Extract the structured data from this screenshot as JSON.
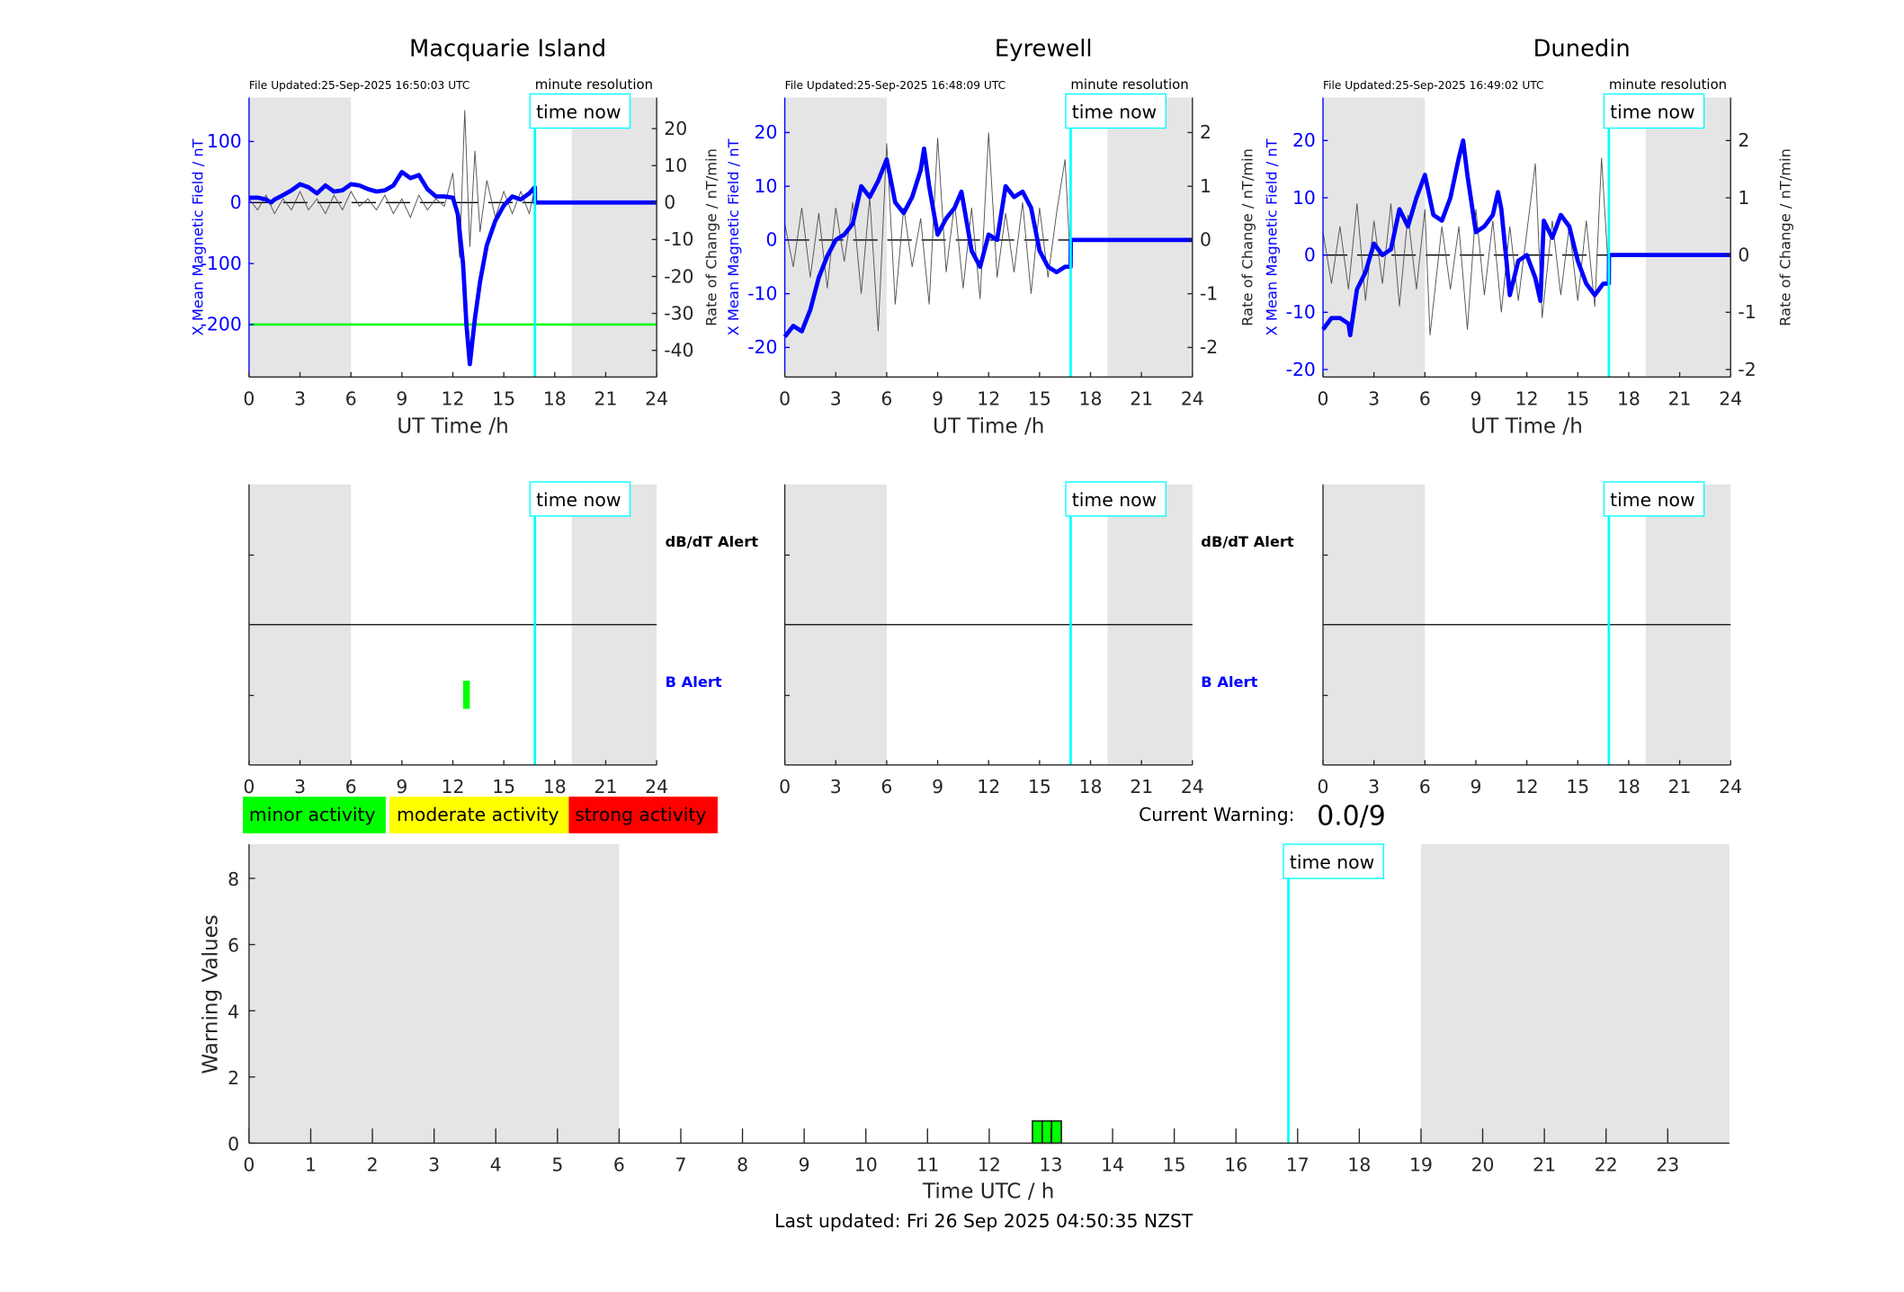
{
  "colors": {
    "field": "#0000ff",
    "roc": "#000000",
    "timenow": "#00ffff",
    "shade": "#e5e5e5",
    "threshold": "#00ff00",
    "minor": "#00ff00",
    "moderate": "#ffff00",
    "strong": "#ff0000"
  },
  "time_now_label": "time now",
  "resolution_label": "minute resolution",
  "legend": {
    "minor": "minor activity",
    "moderate": "moderate activity",
    "strong": "strong activity"
  },
  "current_warning": {
    "label": "Current Warning:",
    "value": "0.0/9"
  },
  "footer": "Last updated: Fri 26 Sep 2025 04:50:35 NZST",
  "chart_data": [
    {
      "type": "line",
      "title": "Macquarie Island",
      "file_updated": "File Updated:25-Sep-2025 16:50:03 UTC",
      "xlabel": "UT Time /h",
      "ylabel": "X Mean Magnetic Field / nT",
      "y2label": "Rate of Change / nT/min",
      "xlim": [
        0,
        24
      ],
      "xticks": [
        0,
        3,
        6,
        9,
        12,
        15,
        18,
        21,
        24
      ],
      "ylim": [
        -286,
        172
      ],
      "yticks": [
        100,
        0,
        -100,
        -200
      ],
      "y2lim": [
        -47.2,
        28.4
      ],
      "y2ticks": [
        20,
        10,
        0,
        -10,
        -20,
        -30,
        -40
      ],
      "shaded_hours": [
        [
          0,
          6
        ],
        [
          19,
          24
        ]
      ],
      "time_now": 16.83,
      "threshold": -200,
      "x_field": [
        [
          0,
          8
        ],
        [
          0.5,
          8
        ],
        [
          1,
          5
        ],
        [
          1.3,
          0
        ],
        [
          1.5,
          5
        ],
        [
          2,
          12
        ],
        [
          2.5,
          20
        ],
        [
          3,
          30
        ],
        [
          3.5,
          25
        ],
        [
          4,
          15
        ],
        [
          4.5,
          28
        ],
        [
          5,
          18
        ],
        [
          5.5,
          20
        ],
        [
          6,
          30
        ],
        [
          6.5,
          28
        ],
        [
          7,
          22
        ],
        [
          7.5,
          18
        ],
        [
          8,
          20
        ],
        [
          8.5,
          28
        ],
        [
          9,
          50
        ],
        [
          9.5,
          40
        ],
        [
          10,
          45
        ],
        [
          10.5,
          22
        ],
        [
          11,
          10
        ],
        [
          11.5,
          10
        ],
        [
          12,
          8
        ],
        [
          12.3,
          -20
        ],
        [
          12.6,
          -100
        ],
        [
          12.8,
          -200
        ],
        [
          13,
          -265
        ],
        [
          13.3,
          -190
        ],
        [
          13.6,
          -130
        ],
        [
          14,
          -70
        ],
        [
          14.5,
          -30
        ],
        [
          15,
          -5
        ],
        [
          15.5,
          10
        ],
        [
          16,
          5
        ],
        [
          16.5,
          15
        ],
        [
          16.83,
          25
        ],
        [
          16.84,
          0
        ],
        [
          24,
          0
        ]
      ],
      "rate_of_change": [
        [
          0,
          1
        ],
        [
          0.5,
          -2
        ],
        [
          1,
          2
        ],
        [
          1.5,
          -3
        ],
        [
          2,
          1
        ],
        [
          2.5,
          -2
        ],
        [
          3,
          3
        ],
        [
          3.5,
          -2
        ],
        [
          4,
          1
        ],
        [
          4.5,
          -3
        ],
        [
          5,
          2
        ],
        [
          5.5,
          -2
        ],
        [
          6,
          3
        ],
        [
          6.5,
          -1
        ],
        [
          7,
          1
        ],
        [
          7.5,
          -2
        ],
        [
          8,
          2
        ],
        [
          8.5,
          -3
        ],
        [
          9,
          1
        ],
        [
          9.5,
          -4
        ],
        [
          10,
          2
        ],
        [
          10.5,
          -2
        ],
        [
          11,
          1
        ],
        [
          11.5,
          -1
        ],
        [
          12,
          8
        ],
        [
          12.4,
          -15
        ],
        [
          12.7,
          25
        ],
        [
          13,
          -12
        ],
        [
          13.3,
          14
        ],
        [
          13.6,
          -8
        ],
        [
          14,
          6
        ],
        [
          14.5,
          -4
        ],
        [
          15,
          3
        ],
        [
          15.5,
          -3
        ],
        [
          16,
          3
        ],
        [
          16.5,
          -3
        ],
        [
          16.83,
          4
        ]
      ],
      "alerts": {
        "dbdt_label": "dB/dT Alert",
        "b_label": "B Alert",
        "b_alert_periods": [
          [
            12.6,
            13.0
          ]
        ],
        "dbdt_alert_periods": []
      }
    },
    {
      "type": "line",
      "title": "Eyrewell",
      "file_updated": "File Updated:25-Sep-2025 16:48:09 UTC",
      "xlabel": "UT Time /h",
      "ylabel": "X Mean Magnetic Field / nT",
      "y2label": "Rate of Change / nT/min",
      "xlim": [
        0,
        24
      ],
      "xticks": [
        0,
        3,
        6,
        9,
        12,
        15,
        18,
        21,
        24
      ],
      "ylim": [
        -25.5,
        26.5
      ],
      "yticks": [
        20,
        10,
        0,
        -10,
        -20
      ],
      "y2lim": [
        -2.55,
        2.65
      ],
      "y2ticks": [
        2,
        1,
        0,
        -1,
        -2
      ],
      "shaded_hours": [
        [
          0,
          6
        ],
        [
          19,
          24
        ]
      ],
      "time_now": 16.83,
      "x_field": [
        [
          0,
          -18
        ],
        [
          0.5,
          -16
        ],
        [
          1,
          -17
        ],
        [
          1.5,
          -13
        ],
        [
          2,
          -7
        ],
        [
          2.5,
          -3
        ],
        [
          3,
          0
        ],
        [
          3.5,
          1
        ],
        [
          4,
          3
        ],
        [
          4.5,
          10
        ],
        [
          5,
          8
        ],
        [
          5.5,
          11
        ],
        [
          6,
          15
        ],
        [
          6.5,
          7
        ],
        [
          7,
          5
        ],
        [
          7.5,
          8
        ],
        [
          8,
          13
        ],
        [
          8.2,
          17
        ],
        [
          8.5,
          10
        ],
        [
          9,
          1
        ],
        [
          9.5,
          4
        ],
        [
          10,
          6
        ],
        [
          10.4,
          9
        ],
        [
          11,
          -2
        ],
        [
          11.5,
          -5
        ],
        [
          12,
          1
        ],
        [
          12.5,
          0
        ],
        [
          13,
          10
        ],
        [
          13.5,
          8
        ],
        [
          14,
          9
        ],
        [
          14.5,
          6
        ],
        [
          15,
          -2
        ],
        [
          15.5,
          -5
        ],
        [
          16,
          -6
        ],
        [
          16.5,
          -5
        ],
        [
          16.83,
          -5
        ],
        [
          16.84,
          0
        ],
        [
          24,
          0
        ]
      ],
      "rate_of_change": [
        [
          0,
          0.3
        ],
        [
          0.5,
          -0.5
        ],
        [
          1,
          0.6
        ],
        [
          1.5,
          -0.7
        ],
        [
          2,
          0.5
        ],
        [
          2.5,
          -0.9
        ],
        [
          3,
          0.6
        ],
        [
          3.5,
          -0.4
        ],
        [
          4,
          0.7
        ],
        [
          4.5,
          -1.0
        ],
        [
          5,
          0.8
        ],
        [
          5.5,
          -1.7
        ],
        [
          6,
          1.8
        ],
        [
          6.5,
          -1.2
        ],
        [
          7,
          0.6
        ],
        [
          7.5,
          -0.5
        ],
        [
          8,
          0.4
        ],
        [
          8.5,
          -1.2
        ],
        [
          9,
          1.9
        ],
        [
          9.5,
          -0.6
        ],
        [
          10,
          0.7
        ],
        [
          10.5,
          -0.9
        ],
        [
          11,
          0.6
        ],
        [
          11.5,
          -1.1
        ],
        [
          12,
          2.0
        ],
        [
          12.5,
          -0.7
        ],
        [
          13,
          0.5
        ],
        [
          13.5,
          -0.6
        ],
        [
          14,
          0.7
        ],
        [
          14.5,
          -1.0
        ],
        [
          15,
          0.6
        ],
        [
          15.5,
          -0.7
        ],
        [
          16,
          0.5
        ],
        [
          16.5,
          1.5
        ],
        [
          16.83,
          -0.5
        ]
      ],
      "alerts": {
        "dbdt_label": "dB/dT Alert",
        "b_label": "B Alert",
        "b_alert_periods": [],
        "dbdt_alert_periods": []
      }
    },
    {
      "type": "line",
      "title": "Dunedin",
      "file_updated": "File Updated:25-Sep-2025 16:49:02 UTC",
      "xlabel": "UT Time /h",
      "ylabel": "X Mean Magnetic Field / nT",
      "y2label": "Rate of Change / nT/min",
      "xlim": [
        0,
        24
      ],
      "xticks": [
        0,
        3,
        6,
        9,
        12,
        15,
        18,
        21,
        24
      ],
      "ylim": [
        -21.3,
        27.5
      ],
      "yticks": [
        20,
        10,
        0,
        -10,
        -20
      ],
      "y2lim": [
        -2.13,
        2.75
      ],
      "y2ticks": [
        2,
        1,
        0,
        -1,
        -2
      ],
      "shaded_hours": [
        [
          0,
          6
        ],
        [
          19,
          24
        ]
      ],
      "time_now": 16.83,
      "x_field": [
        [
          0,
          -13
        ],
        [
          0.5,
          -11
        ],
        [
          1,
          -11
        ],
        [
          1.5,
          -12
        ],
        [
          1.6,
          -14
        ],
        [
          2,
          -6
        ],
        [
          2.5,
          -3
        ],
        [
          3,
          2
        ],
        [
          3.5,
          0
        ],
        [
          4,
          1
        ],
        [
          4.5,
          8
        ],
        [
          5,
          5
        ],
        [
          5.5,
          10
        ],
        [
          6,
          14
        ],
        [
          6.5,
          7
        ],
        [
          7,
          6
        ],
        [
          7.5,
          10
        ],
        [
          8,
          17
        ],
        [
          8.25,
          20
        ],
        [
          8.5,
          14
        ],
        [
          9,
          4
        ],
        [
          9.5,
          5
        ],
        [
          10,
          7
        ],
        [
          10.3,
          11
        ],
        [
          10.5,
          8
        ],
        [
          11,
          -7
        ],
        [
          11.5,
          -1
        ],
        [
          12,
          0
        ],
        [
          12.5,
          -4
        ],
        [
          12.8,
          -8
        ],
        [
          13,
          6
        ],
        [
          13.5,
          3
        ],
        [
          14,
          7
        ],
        [
          14.5,
          5
        ],
        [
          15,
          -1
        ],
        [
          15.5,
          -5
        ],
        [
          16,
          -7
        ],
        [
          16.5,
          -5
        ],
        [
          16.83,
          -5
        ],
        [
          16.84,
          0
        ],
        [
          24,
          0
        ]
      ],
      "rate_of_change": [
        [
          0,
          0.4
        ],
        [
          0.5,
          -0.5
        ],
        [
          1,
          0.5
        ],
        [
          1.5,
          -0.6
        ],
        [
          2,
          0.9
        ],
        [
          2.5,
          -0.8
        ],
        [
          3,
          0.6
        ],
        [
          3.5,
          -0.5
        ],
        [
          4,
          0.9
        ],
        [
          4.5,
          -0.9
        ],
        [
          5,
          0.7
        ],
        [
          5.5,
          -0.6
        ],
        [
          6,
          0.8
        ],
        [
          6.3,
          -1.4
        ],
        [
          7,
          0.5
        ],
        [
          7.5,
          -0.6
        ],
        [
          8,
          0.5
        ],
        [
          8.5,
          -1.3
        ],
        [
          9,
          0.8
        ],
        [
          9.5,
          -0.7
        ],
        [
          10,
          0.6
        ],
        [
          10.5,
          -1.0
        ],
        [
          11,
          0.5
        ],
        [
          11.5,
          -0.8
        ],
        [
          12,
          0.4
        ],
        [
          12.5,
          1.6
        ],
        [
          12.9,
          -1.1
        ],
        [
          13.5,
          0.6
        ],
        [
          14,
          -0.7
        ],
        [
          14.5,
          0.5
        ],
        [
          15,
          -0.8
        ],
        [
          15.5,
          0.6
        ],
        [
          16,
          -0.9
        ],
        [
          16.4,
          1.7
        ],
        [
          16.83,
          -0.4
        ]
      ],
      "alerts": {
        "dbdt_label": "",
        "b_label": "",
        "b_alert_periods": [],
        "dbdt_alert_periods": []
      }
    },
    {
      "type": "bar",
      "xlabel": "Time UTC / h",
      "ylabel": "Warning Values",
      "xlim": [
        0,
        24
      ],
      "xticks": [
        0,
        1,
        2,
        3,
        4,
        5,
        6,
        7,
        8,
        9,
        10,
        11,
        12,
        13,
        14,
        15,
        16,
        17,
        18,
        19,
        20,
        21,
        22,
        23
      ],
      "ylim": [
        0,
        9.03
      ],
      "yticks": [
        0,
        2,
        4,
        6,
        8
      ],
      "shaded_hours": [
        [
          0,
          6
        ],
        [
          19,
          24
        ]
      ],
      "time_now": 16.85,
      "bars": [
        {
          "start": 12.7,
          "end": 12.86,
          "value": 0.67,
          "level": "minor"
        },
        {
          "start": 12.86,
          "end": 13.01,
          "value": 0.67,
          "level": "minor"
        },
        {
          "start": 13.01,
          "end": 13.17,
          "value": 0.67,
          "level": "minor"
        }
      ]
    }
  ]
}
